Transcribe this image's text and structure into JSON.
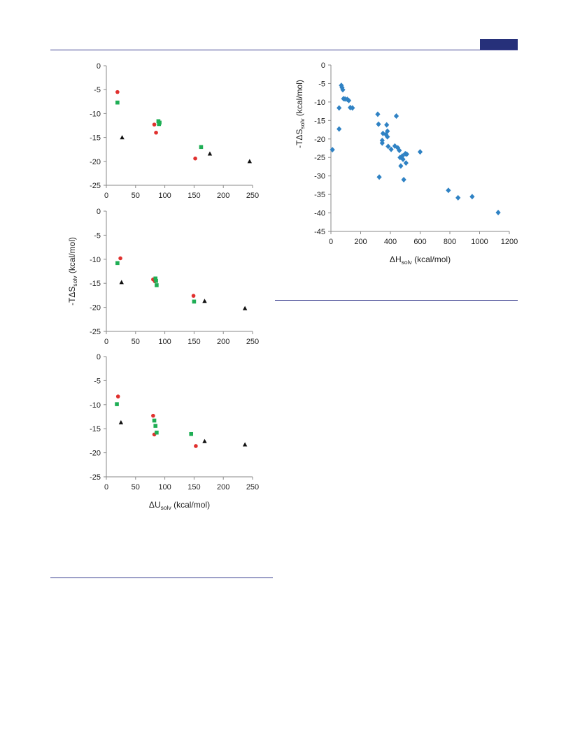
{
  "header": {
    "accent_color": "#26307a"
  },
  "chart_data": [
    {
      "type": "scatter",
      "panel": "left-top",
      "xlim": [
        0,
        250
      ],
      "ylim": [
        -25,
        0
      ],
      "xticks": [
        0,
        50,
        100,
        150,
        200,
        250
      ],
      "yticks": [
        0,
        -5,
        -10,
        -15,
        -20,
        -25
      ],
      "series": [
        {
          "marker": "circle",
          "color": "#e0302e",
          "points": [
            [
              19,
              -5.5
            ],
            [
              82,
              -12.3
            ],
            [
              85,
              -14.0
            ],
            [
              152,
              -19.4
            ]
          ]
        },
        {
          "marker": "square",
          "color": "#1fae55",
          "points": [
            [
              19,
              -7.7
            ],
            [
              89,
              -11.6
            ],
            [
              90,
              -12.2
            ],
            [
              91,
              -11.9
            ],
            [
              162,
              -17.0
            ]
          ]
        },
        {
          "marker": "triangle",
          "color": "#111111",
          "points": [
            [
              27,
              -15.0
            ],
            [
              177,
              -18.4
            ],
            [
              245,
              -20.0
            ]
          ]
        }
      ]
    },
    {
      "type": "scatter",
      "panel": "left-middle",
      "xlim": [
        0,
        250
      ],
      "ylim": [
        -25,
        0
      ],
      "xticks": [
        0,
        50,
        100,
        150,
        200,
        250
      ],
      "yticks": [
        0,
        -5,
        -10,
        -15,
        -20,
        -25
      ],
      "ylabel": "-TΔS",
      "ylabel_sub": "solv",
      "ylabel_unit": " (kcal/mol)",
      "series": [
        {
          "marker": "circle",
          "color": "#e0302e",
          "points": [
            [
              24,
              -9.8
            ],
            [
              80,
              -14.2
            ],
            [
              83,
              -14.6
            ],
            [
              149,
              -17.6
            ]
          ]
        },
        {
          "marker": "square",
          "color": "#1fae55",
          "points": [
            [
              19,
              -10.8
            ],
            [
              84,
              -14.0
            ],
            [
              85,
              -14.5
            ],
            [
              86,
              -15.4
            ],
            [
              150,
              -18.8
            ]
          ]
        },
        {
          "marker": "triangle",
          "color": "#111111",
          "points": [
            [
              26,
              -14.8
            ],
            [
              168,
              -18.7
            ],
            [
              237,
              -20.2
            ]
          ]
        }
      ]
    },
    {
      "type": "scatter",
      "panel": "left-bottom",
      "xlim": [
        0,
        250
      ],
      "ylim": [
        -25,
        0
      ],
      "xticks": [
        0,
        50,
        100,
        150,
        200,
        250
      ],
      "yticks": [
        0,
        -5,
        -10,
        -15,
        -20,
        -25
      ],
      "xlabel": "ΔU",
      "xlabel_sub": "solv",
      "xlabel_unit": " (kcal/mol)",
      "series": [
        {
          "marker": "circle",
          "color": "#e0302e",
          "points": [
            [
              20,
              -8.3
            ],
            [
              80,
              -12.3
            ],
            [
              82,
              -16.2
            ],
            [
              153,
              -18.6
            ]
          ]
        },
        {
          "marker": "square",
          "color": "#1fae55",
          "points": [
            [
              18,
              -9.9
            ],
            [
              82,
              -13.3
            ],
            [
              84,
              -14.4
            ],
            [
              86,
              -15.8
            ],
            [
              145,
              -16.1
            ]
          ]
        },
        {
          "marker": "triangle",
          "color": "#111111",
          "points": [
            [
              25,
              -13.7
            ],
            [
              168,
              -17.6
            ],
            [
              237,
              -18.3
            ]
          ]
        }
      ]
    },
    {
      "type": "scatter",
      "panel": "right",
      "xlim": [
        0,
        1200
      ],
      "ylim": [
        -45,
        0
      ],
      "xticks": [
        0,
        200,
        400,
        600,
        800,
        1000,
        1200
      ],
      "yticks": [
        0,
        -5,
        -10,
        -15,
        -20,
        -25,
        -30,
        -35,
        -40,
        -45
      ],
      "xlabel": "ΔH",
      "xlabel_sub": "solv",
      "xlabel_unit": " (kcal/mol)",
      "ylabel": "-TΔS",
      "ylabel_sub": "solv",
      "ylabel_unit": " (kcal/mol)",
      "series": [
        {
          "marker": "diamond",
          "color": "#2f82c4",
          "points": [
            [
              10,
              -22.9
            ],
            [
              55,
              -11.6
            ],
            [
              55,
              -17.3
            ],
            [
              70,
              -5.5
            ],
            [
              75,
              -6.1
            ],
            [
              80,
              -6.7
            ],
            [
              85,
              -9.1
            ],
            [
              95,
              -9.2
            ],
            [
              110,
              -9.3
            ],
            [
              120,
              -9.6
            ],
            [
              130,
              -11.5
            ],
            [
              145,
              -11.6
            ],
            [
              315,
              -13.3
            ],
            [
              320,
              -16.0
            ],
            [
              325,
              -30.3
            ],
            [
              345,
              -20.4
            ],
            [
              345,
              -21.1
            ],
            [
              350,
              -18.5
            ],
            [
              370,
              -18.8
            ],
            [
              375,
              -16.2
            ],
            [
              380,
              -17.9
            ],
            [
              380,
              -19.4
            ],
            [
              385,
              -22.0
            ],
            [
              405,
              -22.8
            ],
            [
              430,
              -21.9
            ],
            [
              440,
              -13.8
            ],
            [
              450,
              -22.4
            ],
            [
              460,
              -23.1
            ],
            [
              465,
              -25.0
            ],
            [
              470,
              -27.3
            ],
            [
              480,
              -24.6
            ],
            [
              485,
              -25.5
            ],
            [
              490,
              -31.0
            ],
            [
              500,
              -24.0
            ],
            [
              505,
              -26.5
            ],
            [
              510,
              -24.1
            ],
            [
              600,
              -23.5
            ],
            [
              790,
              -33.9
            ],
            [
              855,
              -35.9
            ],
            [
              950,
              -35.6
            ],
            [
              1125,
              -39.9
            ]
          ]
        }
      ]
    }
  ]
}
